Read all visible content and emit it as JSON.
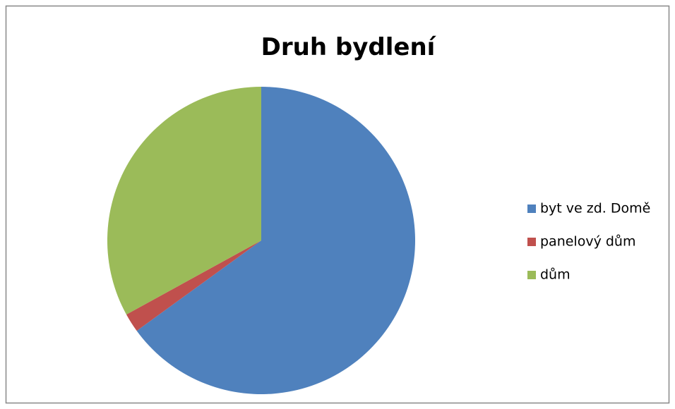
{
  "chart_data": {
    "type": "pie",
    "title": "Druh bydlení",
    "categories": [
      "byt ve zd. Domě",
      "panelový dům",
      "dům"
    ],
    "values": [
      65,
      2,
      33
    ],
    "colors": [
      "#4f81bd",
      "#c0504d",
      "#9bbb59"
    ],
    "legend": "right"
  }
}
